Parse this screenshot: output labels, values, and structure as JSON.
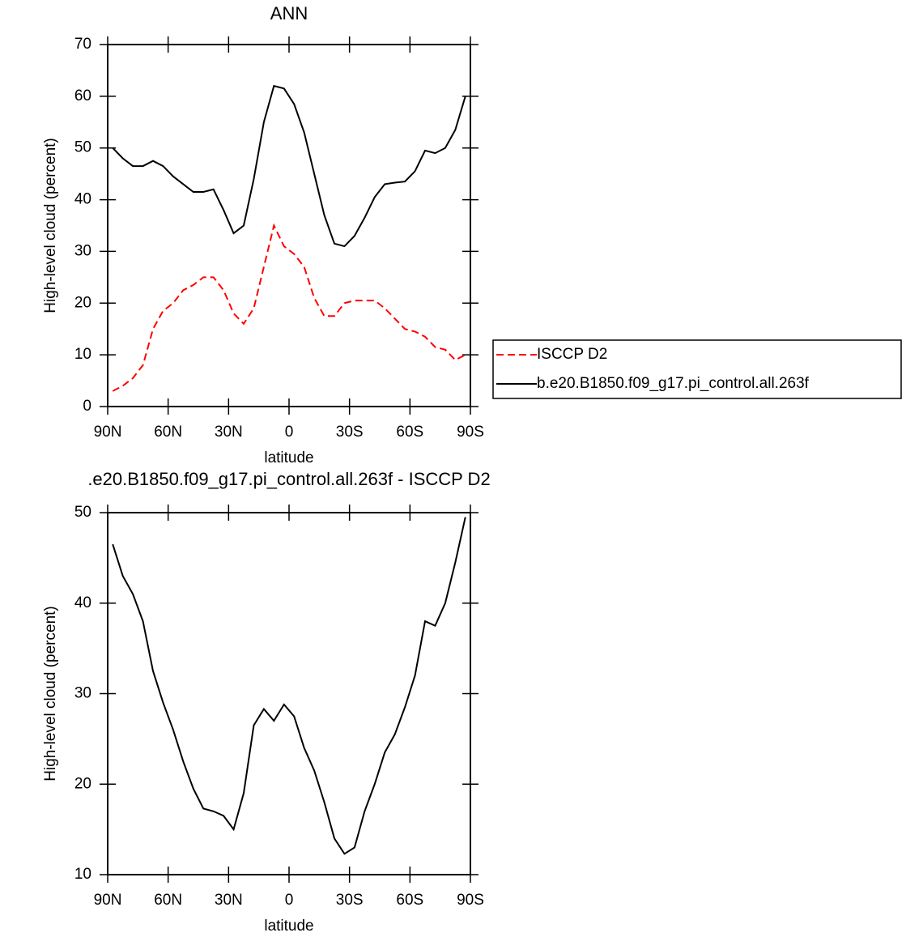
{
  "chart_data": [
    {
      "type": "line",
      "title": "ANN",
      "xlabel": "latitude",
      "ylabel": "High-level cloud (percent)",
      "x": [
        87.5,
        82.5,
        77.5,
        72.5,
        67.5,
        62.5,
        57.5,
        52.5,
        47.5,
        42.5,
        37.5,
        32.5,
        27.5,
        22.5,
        17.5,
        12.5,
        7.5,
        2.5,
        -2.5,
        -7.5,
        -12.5,
        -17.5,
        -22.5,
        -27.5,
        -32.5,
        -37.5,
        -42.5,
        -47.5,
        -52.5,
        -57.5,
        -62.5,
        -67.5,
        -72.5,
        -77.5,
        -82.5,
        -87.5
      ],
      "series": [
        {
          "name": "ISCCP D2",
          "color": "#ff0000",
          "linestyle": "dashed",
          "values": [
            3,
            4,
            5.5,
            8,
            15,
            18.5,
            20,
            22.5,
            23.5,
            25,
            25,
            22.5,
            18,
            16,
            19,
            27,
            35,
            31,
            29.5,
            27,
            21,
            17.5,
            17.5,
            20,
            20.5,
            20.5,
            20.5,
            19,
            17,
            15,
            14.5,
            13.5,
            11.5,
            11,
            9,
            10
          ]
        },
        {
          "name": "b.e20.B1850.f09_g17.pi_control.all.263f",
          "color": "#000000",
          "linestyle": "solid",
          "values": [
            50,
            48,
            46.5,
            46.5,
            47.5,
            46.5,
            44.5,
            43,
            41.5,
            41.5,
            42,
            38,
            33.5,
            35,
            44,
            55,
            62,
            61.5,
            58.5,
            53,
            45,
            37,
            31.5,
            31,
            33,
            36.5,
            40.5,
            43,
            43.3,
            43.5,
            45.5,
            49.5,
            49,
            50,
            53.5,
            60
          ]
        }
      ],
      "xlim": [
        90,
        -90
      ],
      "xticks": [
        {
          "value": 90,
          "label": "90N"
        },
        {
          "value": 60,
          "label": "60N"
        },
        {
          "value": 30,
          "label": "30N"
        },
        0,
        {
          "value": -30,
          "label": "30S"
        },
        {
          "value": -60,
          "label": "60S"
        },
        {
          "value": -90,
          "label": "90S"
        }
      ],
      "ylim": [
        0,
        70
      ],
      "yticks": [
        0,
        10,
        20,
        30,
        40,
        50,
        60,
        70
      ],
      "legend": "right"
    },
    {
      "type": "line",
      "title": ".e20.B1850.f09_g17.pi_control.all.263f - ISCCP D2",
      "xlabel": "latitude",
      "ylabel": "High-level cloud (percent)",
      "x": [
        87.5,
        82.5,
        77.5,
        72.5,
        67.5,
        62.5,
        57.5,
        52.5,
        47.5,
        42.5,
        37.5,
        32.5,
        27.5,
        22.5,
        17.5,
        12.5,
        7.5,
        2.5,
        -2.5,
        -7.5,
        -12.5,
        -17.5,
        -22.5,
        -27.5,
        -32.5,
        -37.5,
        -42.5,
        -47.5,
        -52.5,
        -57.5,
        -62.5,
        -67.5,
        -72.5,
        -77.5,
        -82.5,
        -87.5
      ],
      "values": [
        46.5,
        43,
        41,
        38,
        32.5,
        29,
        26,
        22.5,
        19.5,
        17.3,
        17,
        16.5,
        15,
        19,
        26.5,
        28.3,
        27,
        28.8,
        27.5,
        24,
        21.5,
        18,
        14,
        12.3,
        13,
        17,
        20,
        23.5,
        25.5,
        28.5,
        32,
        38,
        37.5,
        40,
        44.5,
        49.5
      ],
      "color": "#000000",
      "xlim": [
        90,
        -90
      ],
      "xticks": [
        {
          "value": 90,
          "label": "90N"
        },
        {
          "value": 60,
          "label": "60N"
        },
        {
          "value": 30,
          "label": "30N"
        },
        0,
        {
          "value": -30,
          "label": "30S"
        },
        {
          "value": -60,
          "label": "60S"
        },
        {
          "value": -90,
          "label": "90S"
        }
      ],
      "ylim": [
        10,
        50
      ],
      "yticks": [
        10,
        20,
        30,
        40,
        50
      ]
    }
  ]
}
